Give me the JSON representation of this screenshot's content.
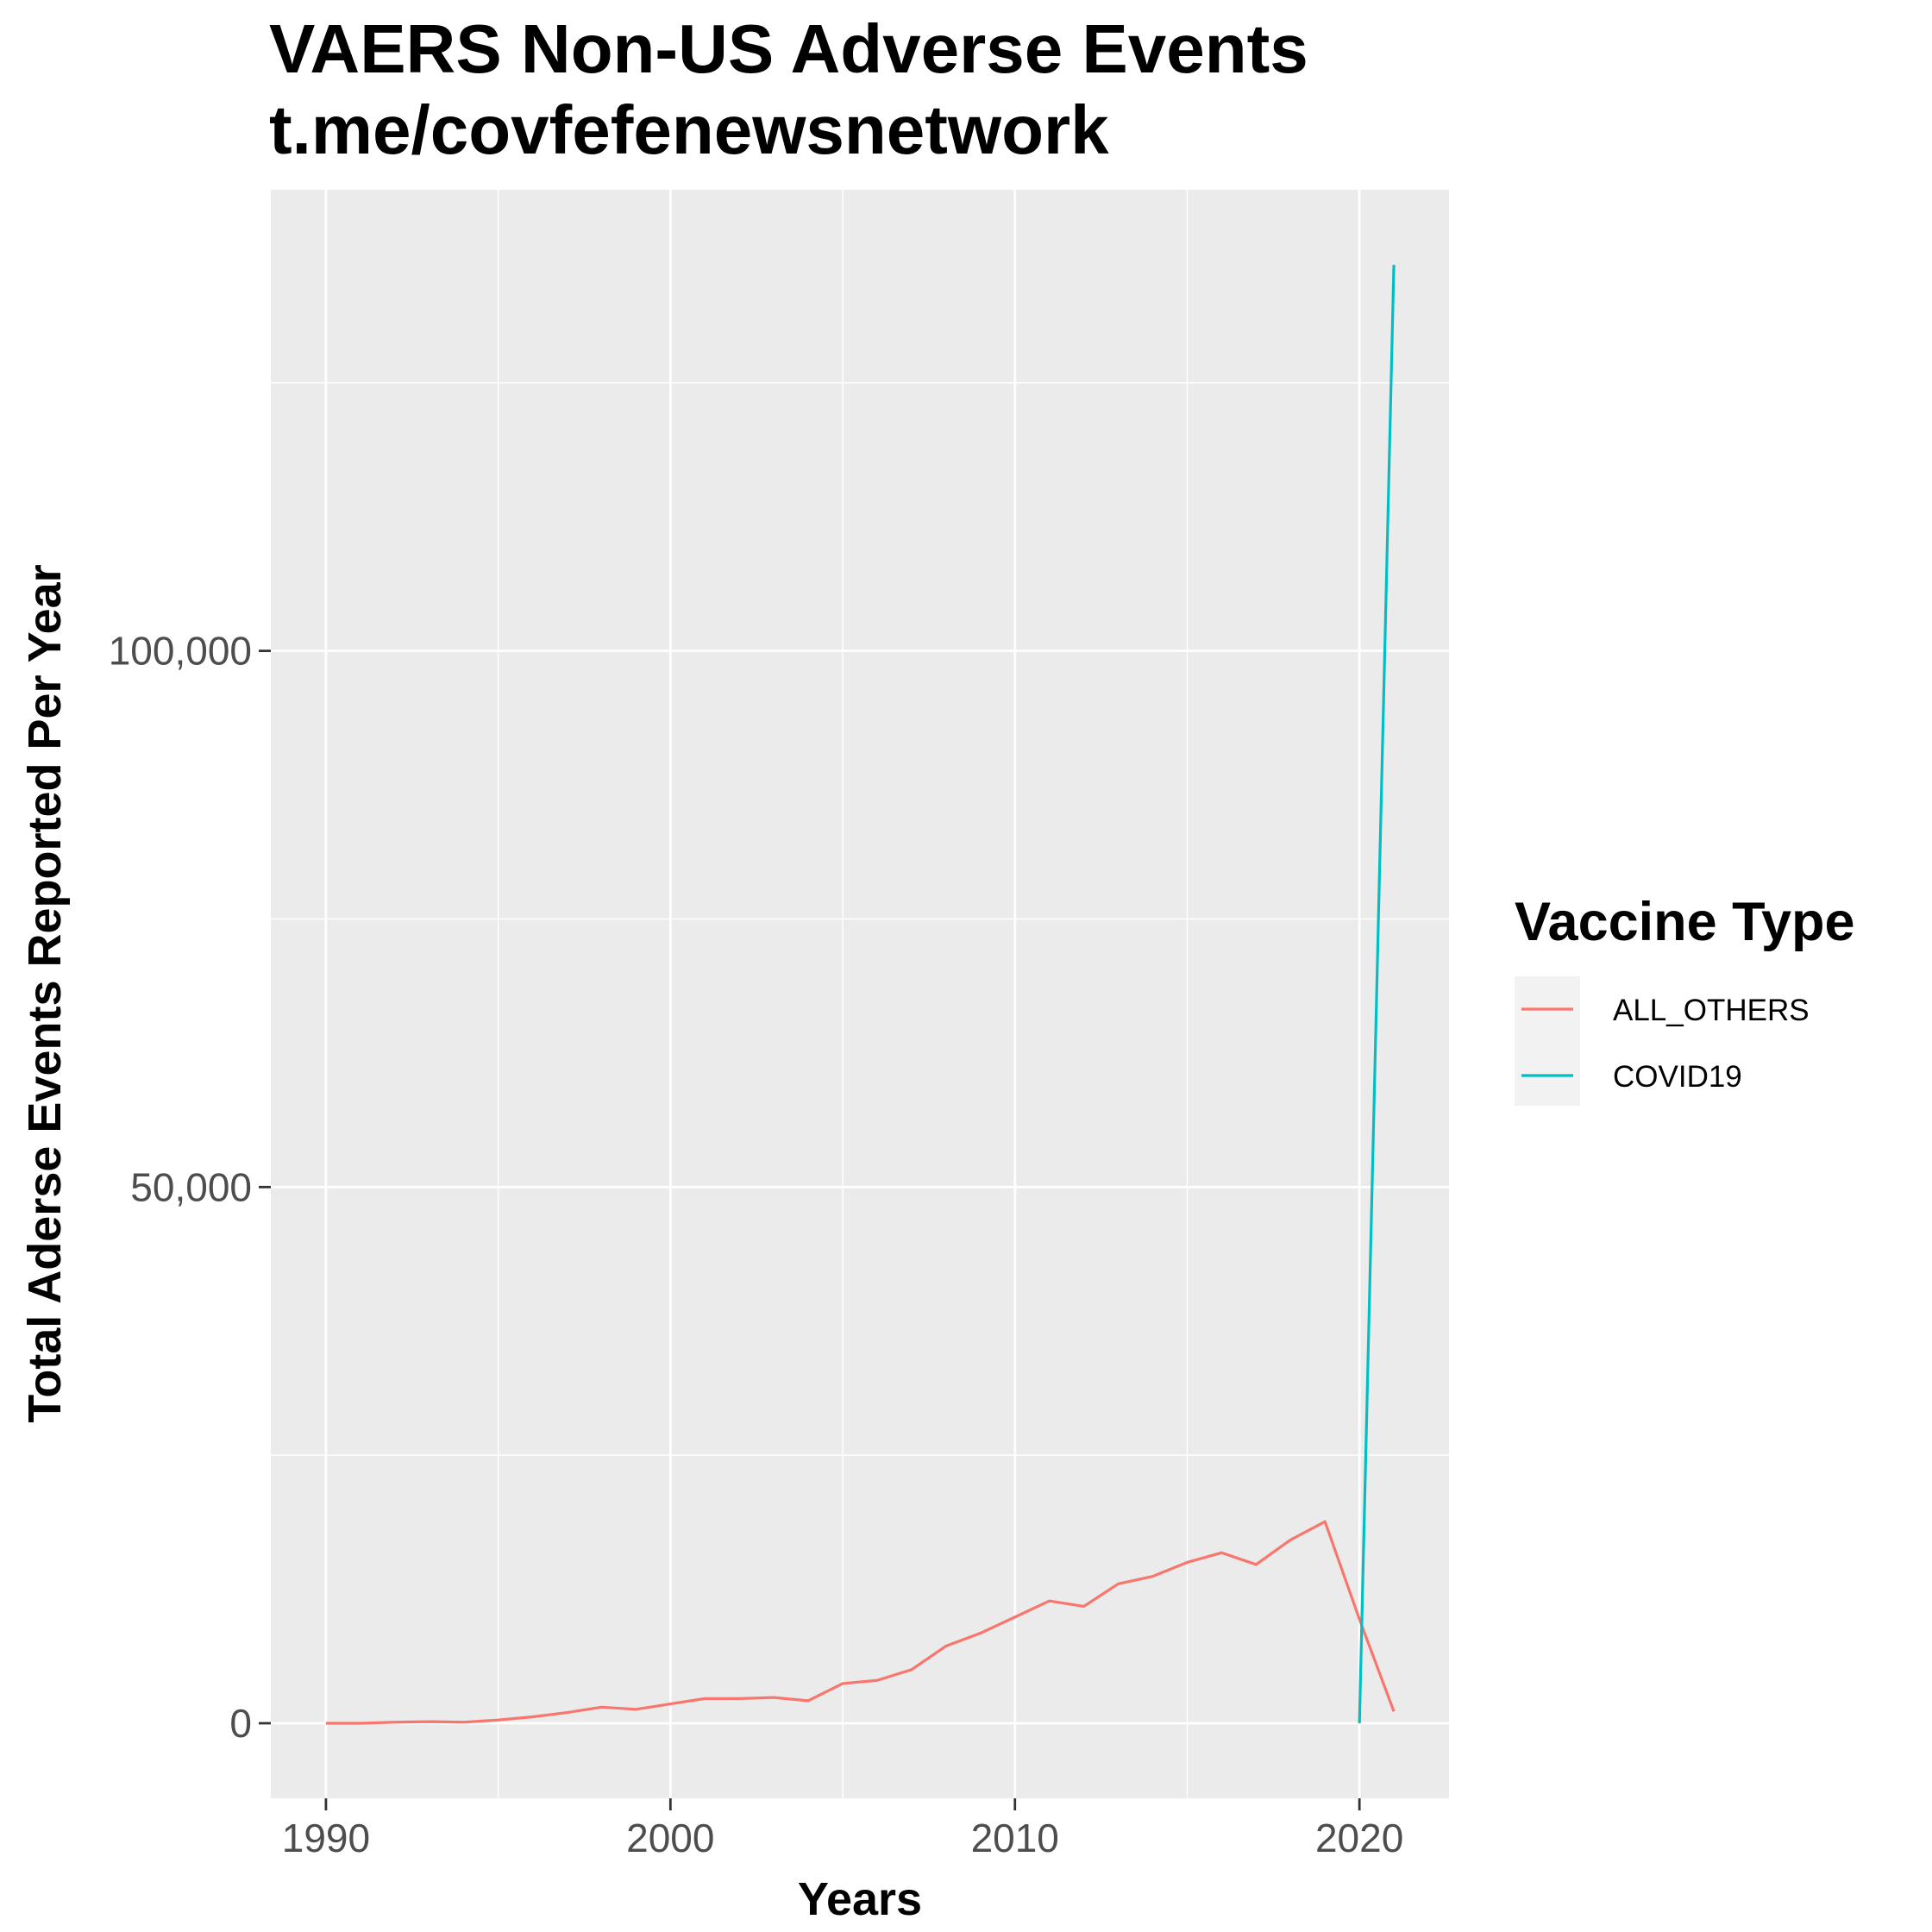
{
  "chart_data": {
    "type": "line",
    "title": "VAERS Non-US Adverse Events",
    "subtitle": "t.me/covfefenewsnetwork",
    "xlabel": "Years",
    "ylabel": "Total Aderse Events Reported Per Year",
    "xlim": [
      1988.4,
      2022.6
    ],
    "ylim": [
      -7000,
      143000
    ],
    "x_ticks": [
      1990,
      2000,
      2010,
      2020
    ],
    "x_tick_labels": [
      "1990",
      "2000",
      "2010",
      "2020"
    ],
    "y_ticks": [
      0,
      50000,
      100000
    ],
    "y_tick_labels": [
      "0",
      "50,000",
      "100,000"
    ],
    "x_minor_grid": [
      1995,
      2005,
      2015
    ],
    "y_minor_grid": [
      25000,
      75000,
      125000
    ],
    "grid": true,
    "legend_title": "Vaccine Type",
    "legend_position": "right",
    "series": [
      {
        "name": "ALL_OTHERS",
        "color": "#F8766D",
        "x": [
          1990,
          1991,
          1992,
          1993,
          1994,
          1995,
          1996,
          1997,
          1998,
          1999,
          2000,
          2001,
          2002,
          2003,
          2004,
          2005,
          2006,
          2007,
          2008,
          2009,
          2010,
          2011,
          2012,
          2013,
          2014,
          2015,
          2016,
          2017,
          2018,
          2019,
          2020,
          2021
        ],
        "y": [
          0,
          0,
          100,
          150,
          100,
          300,
          600,
          1000,
          1500,
          1300,
          1800,
          2300,
          2300,
          2400,
          2100,
          3700,
          4000,
          5000,
          7200,
          8400,
          9900,
          11400,
          10900,
          13000,
          13700,
          15000,
          15900,
          14800,
          17100,
          18800,
          9700,
          1100
        ]
      },
      {
        "name": "COVID19",
        "color": "#00BFC4",
        "x": [
          2020,
          2021
        ],
        "y": [
          0,
          136000
        ]
      }
    ]
  }
}
